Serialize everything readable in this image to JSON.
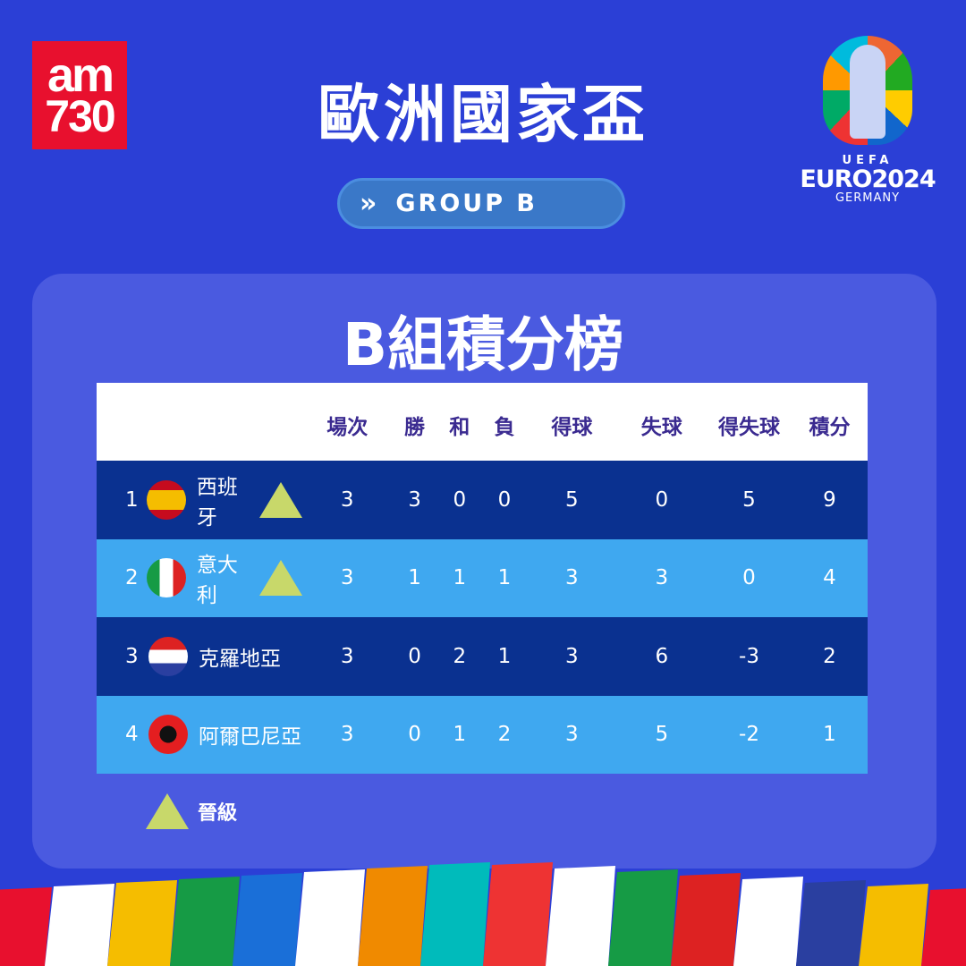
{
  "brand": {
    "logo_line1": "am",
    "logo_line2": "730",
    "color": "#e8102e"
  },
  "header": {
    "title": "歐洲國家盃",
    "group_label": "GROUP B"
  },
  "euro_logo": {
    "uefa": "UEFA",
    "event": "EURO2024",
    "host": "GERMANY"
  },
  "standings": {
    "title": "B組積分榜",
    "columns": [
      "場次",
      "勝",
      "和",
      "負",
      "得球",
      "失球",
      "得失球",
      "積分"
    ],
    "rows": [
      {
        "rank": "1",
        "team": "西班牙",
        "flag": "spain",
        "qualified": true,
        "stats": [
          "3",
          "3",
          "0",
          "0",
          "5",
          "0",
          "5",
          "9"
        ]
      },
      {
        "rank": "2",
        "team": "意大利",
        "flag": "italy",
        "qualified": true,
        "stats": [
          "3",
          "1",
          "1",
          "1",
          "3",
          "3",
          "0",
          "4"
        ]
      },
      {
        "rank": "3",
        "team": "克羅地亞",
        "flag": "croatia",
        "qualified": false,
        "stats": [
          "3",
          "0",
          "2",
          "1",
          "3",
          "6",
          "-3",
          "2"
        ]
      },
      {
        "rank": "4",
        "team": "阿爾巴尼亞",
        "flag": "albania",
        "qualified": false,
        "stats": [
          "3",
          "0",
          "1",
          "2",
          "3",
          "5",
          "-2",
          "1"
        ]
      }
    ]
  },
  "legend": {
    "qualified_label": "晉級",
    "color": "#c8d86a"
  },
  "colors": {
    "background": "#2b3fd6",
    "panel": "#4a5ae0",
    "row_dark": "#0a3190",
    "row_light": "#3fa8f0"
  }
}
